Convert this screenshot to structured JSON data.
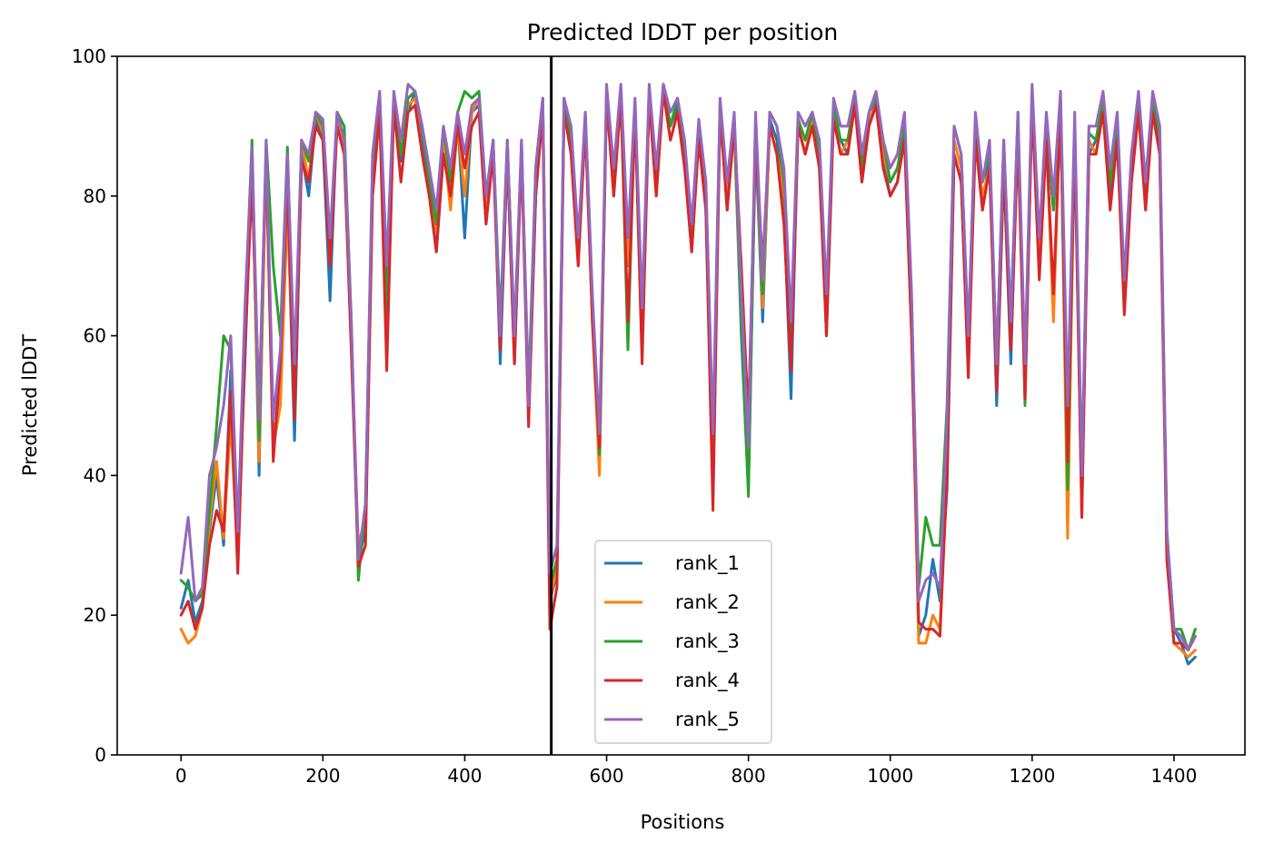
{
  "chart_data": {
    "type": "line",
    "title": "Predicted lDDT per position",
    "xlabel": "Positions",
    "ylabel": "Predicted lDDT",
    "xlim": [
      -90,
      1500
    ],
    "ylim": [
      0,
      100
    ],
    "xticks": [
      0,
      200,
      400,
      600,
      800,
      1000,
      1200,
      1400
    ],
    "yticks": [
      0,
      20,
      40,
      60,
      80,
      100
    ],
    "grid": false,
    "legend_position": "lower-center",
    "vline": 522,
    "colors": [
      "#1f77b4",
      "#ff7f0e",
      "#2ca02c",
      "#d62728",
      "#9467bd"
    ],
    "x": [
      0,
      10,
      20,
      30,
      40,
      50,
      60,
      70,
      80,
      90,
      100,
      110,
      120,
      130,
      140,
      150,
      160,
      170,
      180,
      190,
      200,
      210,
      220,
      230,
      240,
      250,
      260,
      270,
      280,
      290,
      300,
      310,
      320,
      330,
      340,
      350,
      360,
      370,
      380,
      390,
      400,
      410,
      420,
      430,
      440,
      450,
      460,
      470,
      480,
      490,
      500,
      510,
      520,
      530,
      540,
      550,
      560,
      570,
      580,
      590,
      600,
      610,
      620,
      630,
      640,
      650,
      660,
      670,
      680,
      690,
      700,
      710,
      720,
      730,
      740,
      750,
      760,
      770,
      780,
      790,
      800,
      810,
      820,
      830,
      840,
      850,
      860,
      870,
      880,
      890,
      900,
      910,
      920,
      930,
      940,
      950,
      960,
      970,
      980,
      990,
      1000,
      1010,
      1020,
      1030,
      1040,
      1050,
      1060,
      1070,
      1080,
      1090,
      1100,
      1110,
      1120,
      1130,
      1140,
      1150,
      1160,
      1170,
      1180,
      1190,
      1200,
      1210,
      1220,
      1230,
      1240,
      1250,
      1260,
      1270,
      1280,
      1290,
      1300,
      1310,
      1320,
      1330,
      1340,
      1350,
      1360,
      1370,
      1380,
      1390,
      1400,
      1410,
      1420,
      1430
    ],
    "series": [
      {
        "name": "rank_1",
        "values": [
          21,
          25,
          19,
          22,
          32,
          40,
          30,
          55,
          30,
          56,
          86,
          40,
          87,
          45,
          52,
          80,
          45,
          86,
          80,
          91,
          88,
          65,
          92,
          88,
          60,
          28,
          32,
          82,
          93,
          65,
          94,
          85,
          92,
          95,
          88,
          82,
          72,
          86,
          80,
          91,
          74,
          92,
          93,
          76,
          88,
          56,
          86,
          56,
          88,
          48,
          80,
          93,
          22,
          26,
          92,
          88,
          72,
          90,
          64,
          42,
          94,
          82,
          95,
          72,
          93,
          58,
          95,
          82,
          96,
          90,
          93,
          85,
          72,
          89,
          78,
          40,
          93,
          78,
          90,
          60,
          38,
          88,
          62,
          91,
          88,
          78,
          51,
          91,
          88,
          90,
          86,
          60,
          92,
          88,
          86,
          94,
          82,
          90,
          94,
          85,
          80,
          82,
          90,
          62,
          17,
          20,
          28,
          22,
          38,
          86,
          82,
          55,
          90,
          78,
          86,
          50,
          84,
          56,
          90,
          52,
          94,
          70,
          90,
          78,
          93,
          40,
          88,
          36,
          86,
          88,
          94,
          80,
          90,
          65,
          82,
          92,
          80,
          93,
          88,
          30,
          18,
          16,
          13,
          14
        ]
      },
      {
        "name": "rank_2",
        "values": [
          18,
          16,
          17,
          21,
          33,
          42,
          31,
          48,
          28,
          60,
          85,
          42,
          85,
          44,
          50,
          78,
          50,
          88,
          82,
          92,
          89,
          70,
          91,
          86,
          58,
          30,
          34,
          84,
          94,
          60,
          93,
          86,
          93,
          94,
          86,
          80,
          75,
          88,
          78,
          90,
          80,
          92,
          94,
          78,
          86,
          60,
          88,
          58,
          86,
          50,
          82,
          92,
          22,
          27,
          93,
          86,
          70,
          91,
          62,
          40,
          95,
          80,
          94,
          70,
          92,
          62,
          94,
          80,
          95,
          88,
          92,
          86,
          74,
          90,
          80,
          42,
          92,
          80,
          89,
          62,
          40,
          90,
          64,
          90,
          86,
          80,
          58,
          90,
          86,
          91,
          84,
          62,
          92,
          86,
          88,
          93,
          84,
          91,
          93,
          86,
          82,
          84,
          88,
          60,
          16,
          16,
          20,
          18,
          42,
          88,
          84,
          58,
          88,
          80,
          84,
          54,
          86,
          60,
          90,
          55,
          95,
          72,
          88,
          62,
          94,
          31,
          90,
          34,
          88,
          86,
          93,
          82,
          88,
          64,
          84,
          93,
          78,
          92,
          86,
          28,
          16,
          15,
          14,
          15
        ]
      },
      {
        "name": "rank_3",
        "values": [
          25,
          24,
          22,
          23,
          35,
          47,
          60,
          58,
          30,
          62,
          88,
          45,
          88,
          70,
          60,
          87,
          52,
          88,
          85,
          92,
          90,
          72,
          92,
          90,
          62,
          25,
          36,
          85,
          94,
          62,
          94,
          86,
          94,
          95,
          90,
          82,
          76,
          90,
          82,
          92,
          95,
          94,
          95,
          80,
          88,
          62,
          88,
          60,
          87,
          52,
          84,
          94,
          24,
          28,
          94,
          88,
          72,
          92,
          65,
          43,
          95,
          84,
          95,
          58,
          93,
          60,
          95,
          82,
          96,
          90,
          94,
          86,
          75,
          90,
          82,
          44,
          93,
          82,
          91,
          62,
          37,
          90,
          66,
          92,
          90,
          82,
          60,
          91,
          88,
          92,
          86,
          65,
          93,
          88,
          88,
          94,
          84,
          92,
          94,
          88,
          82,
          84,
          90,
          64,
          24,
          34,
          30,
          30,
          50,
          90,
          86,
          60,
          91,
          82,
          86,
          56,
          88,
          62,
          92,
          50,
          94,
          74,
          90,
          78,
          94,
          38,
          90,
          38,
          89,
          88,
          94,
          82,
          90,
          66,
          84,
          94,
          80,
          94,
          88,
          32,
          18,
          18,
          15,
          18
        ]
      },
      {
        "name": "rank_4",
        "values": [
          20,
          22,
          18,
          21,
          30,
          35,
          32,
          52,
          26,
          58,
          82,
          50,
          86,
          42,
          56,
          82,
          48,
          85,
          82,
          90,
          88,
          70,
          90,
          86,
          58,
          27,
          30,
          80,
          92,
          55,
          93,
          82,
          92,
          93,
          86,
          80,
          72,
          86,
          80,
          90,
          84,
          90,
          92,
          76,
          86,
          58,
          86,
          56,
          86,
          47,
          80,
          92,
          18,
          24,
          92,
          86,
          70,
          90,
          62,
          44,
          94,
          80,
          94,
          62,
          92,
          56,
          94,
          80,
          95,
          88,
          92,
          84,
          72,
          88,
          78,
          35,
          92,
          78,
          90,
          70,
          48,
          88,
          70,
          90,
          86,
          76,
          55,
          90,
          86,
          90,
          84,
          60,
          91,
          86,
          86,
          93,
          82,
          90,
          93,
          84,
          80,
          82,
          88,
          60,
          19,
          18,
          18,
          17,
          40,
          86,
          82,
          54,
          88,
          78,
          84,
          52,
          84,
          58,
          88,
          51,
          93,
          68,
          88,
          66,
          92,
          42,
          88,
          34,
          86,
          86,
          92,
          78,
          88,
          63,
          82,
          92,
          78,
          92,
          86,
          28,
          16,
          16,
          15,
          17
        ]
      },
      {
        "name": "rank_5",
        "values": [
          26,
          34,
          22,
          24,
          40,
          44,
          50,
          60,
          32,
          64,
          87,
          48,
          88,
          48,
          58,
          86,
          56,
          88,
          86,
          92,
          91,
          74,
          92,
          88,
          62,
          28,
          36,
          86,
          95,
          70,
          95,
          88,
          96,
          95,
          90,
          84,
          78,
          90,
          84,
          92,
          86,
          93,
          94,
          80,
          88,
          60,
          88,
          60,
          88,
          50,
          84,
          94,
          26,
          30,
          94,
          90,
          74,
          92,
          66,
          46,
          96,
          84,
          96,
          74,
          94,
          64,
          96,
          84,
          96,
          92,
          94,
          88,
          76,
          91,
          82,
          46,
          94,
          82,
          92,
          66,
          44,
          92,
          68,
          92,
          90,
          84,
          62,
          92,
          90,
          92,
          88,
          66,
          94,
          90,
          90,
          95,
          86,
          92,
          95,
          88,
          84,
          86,
          92,
          66,
          22,
          25,
          26,
          24,
          48,
          90,
          86,
          60,
          92,
          82,
          88,
          56,
          88,
          62,
          92,
          56,
          96,
          74,
          92,
          80,
          95,
          50,
          92,
          40,
          90,
          90,
          95,
          84,
          92,
          68,
          86,
          95,
          82,
          95,
          90,
          32,
          18,
          17,
          15,
          17
        ]
      }
    ]
  }
}
